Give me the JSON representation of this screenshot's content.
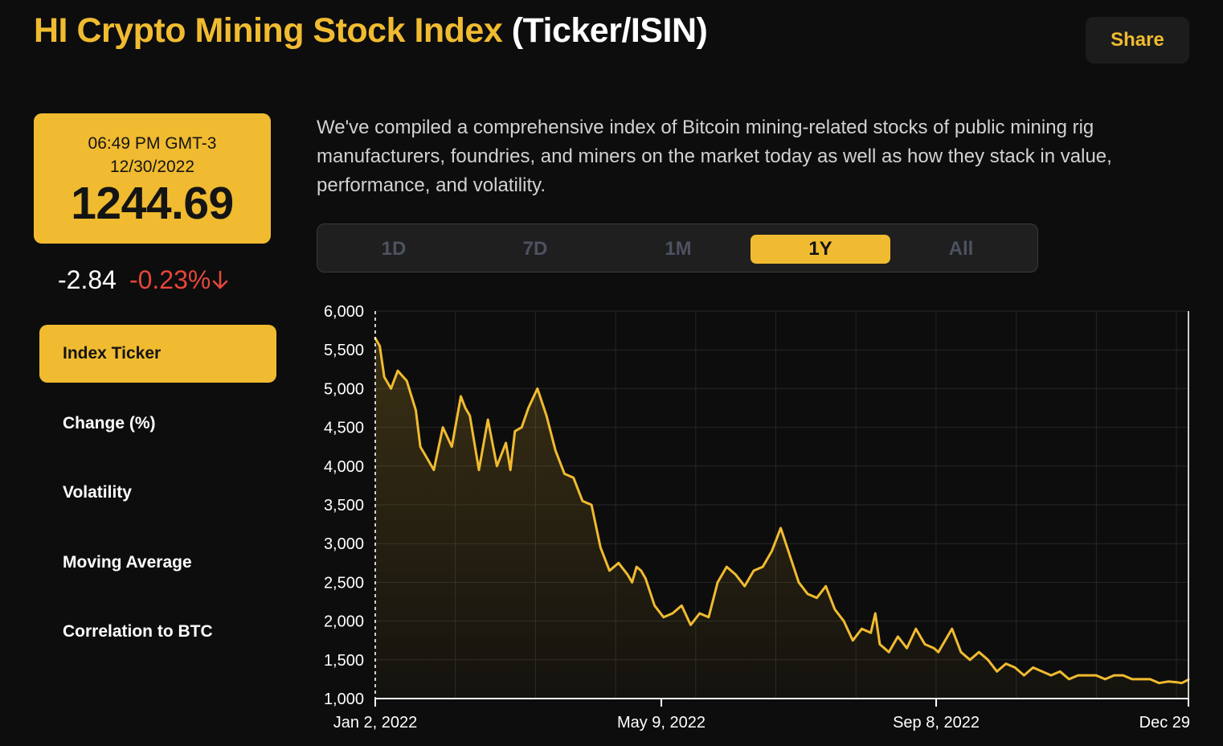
{
  "header": {
    "title_accent": "HI Crypto Mining Stock Index",
    "title_suffix": "(Ticker/ISIN)",
    "share_label": "Share"
  },
  "price_card": {
    "time": "06:49 PM GMT-3",
    "date": "12/30/2022",
    "value": "1244.69"
  },
  "change": {
    "absolute": "-2.84",
    "percent": "-0.23%",
    "direction_icon": "arrow-down-icon"
  },
  "nav": {
    "items": [
      {
        "label": "Index Ticker",
        "active": true
      },
      {
        "label": "Change (%)",
        "active": false
      },
      {
        "label": "Volatility",
        "active": false
      },
      {
        "label": "Moving Average",
        "active": false
      },
      {
        "label": "Correlation to BTC",
        "active": false
      }
    ]
  },
  "description": "We've compiled a comprehensive index of Bitcoin mining-related stocks of public mining rig manufacturers, foundries, and miners on the market today as well as how they stack in value, performance, and volatility.",
  "range_tabs": {
    "items": [
      "1D",
      "7D",
      "1M",
      "1Y",
      "All"
    ],
    "selected": "1Y"
  },
  "colors": {
    "accent": "#f0bb30",
    "negative": "#e6463b",
    "background": "#0d0d0d"
  },
  "chart_data": {
    "type": "area",
    "title": "",
    "xlabel": "",
    "ylabel": "",
    "x_range": [
      "Jan 2, 2022",
      "Dec 29, 2022"
    ],
    "x_tick_labels": [
      "Jan 2, 2022",
      "May 9, 2022",
      "Sep 8, 2022",
      "Dec 29"
    ],
    "x_tick_day_index": [
      0,
      127,
      249,
      361
    ],
    "y_ticks": [
      1000,
      1500,
      2000,
      2500,
      3000,
      3500,
      4000,
      4500,
      5000,
      5500,
      6000
    ],
    "y_tick_labels": [
      "1,000",
      "1,500",
      "2,000",
      "2,500",
      "3,000",
      "3,500",
      "4,000",
      "4,500",
      "5,000",
      "5,500",
      "6,000"
    ],
    "ylim": [
      1000,
      6000
    ],
    "xlim_days": [
      0,
      361
    ],
    "grid": true,
    "series": [
      {
        "name": "HI Crypto Mining Stock Index",
        "day_index": [
          0,
          2,
          4,
          7,
          10,
          14,
          18,
          20,
          22,
          26,
          30,
          34,
          38,
          40,
          42,
          46,
          50,
          54,
          58,
          60,
          62,
          65,
          68,
          72,
          76,
          80,
          84,
          88,
          92,
          96,
          100,
          104,
          108,
          112,
          114,
          116,
          118,
          120,
          124,
          128,
          132,
          136,
          140,
          144,
          148,
          152,
          156,
          160,
          164,
          168,
          172,
          176,
          180,
          184,
          188,
          192,
          196,
          200,
          204,
          208,
          212,
          216,
          220,
          222,
          224,
          226,
          228,
          230,
          232,
          236,
          240,
          244,
          248,
          250,
          252,
          256,
          260,
          264,
          268,
          272,
          276,
          280,
          284,
          288,
          292,
          296,
          300,
          304,
          308,
          312,
          316,
          320,
          324,
          328,
          332,
          336,
          340,
          344,
          348,
          352,
          356,
          358,
          361
        ],
        "values": [
          5650,
          5550,
          5150,
          5000,
          5230,
          5100,
          4720,
          4250,
          4150,
          3950,
          4500,
          4250,
          4900,
          4750,
          4650,
          3950,
          4600,
          4000,
          4300,
          3950,
          4450,
          4500,
          4750,
          5000,
          4650,
          4200,
          3900,
          3850,
          3550,
          3500,
          2950,
          2650,
          2750,
          2600,
          2500,
          2700,
          2650,
          2550,
          2200,
          2050,
          2100,
          2200,
          1950,
          2100,
          2050,
          2500,
          2700,
          2600,
          2450,
          2650,
          2700,
          2900,
          3200,
          2850,
          2500,
          2350,
          2300,
          2450,
          2150,
          2000,
          1750,
          1900,
          1850,
          2100,
          1700,
          1650,
          1600,
          1700,
          1800,
          1650,
          1900,
          1700,
          1650,
          1600,
          1700,
          1900,
          1600,
          1500,
          1600,
          1500,
          1350,
          1450,
          1400,
          1300,
          1400,
          1350,
          1300,
          1350,
          1250,
          1300,
          1300,
          1300,
          1250,
          1300,
          1300,
          1250,
          1250,
          1250,
          1200,
          1220,
          1210,
          1200,
          1245
        ]
      }
    ]
  }
}
